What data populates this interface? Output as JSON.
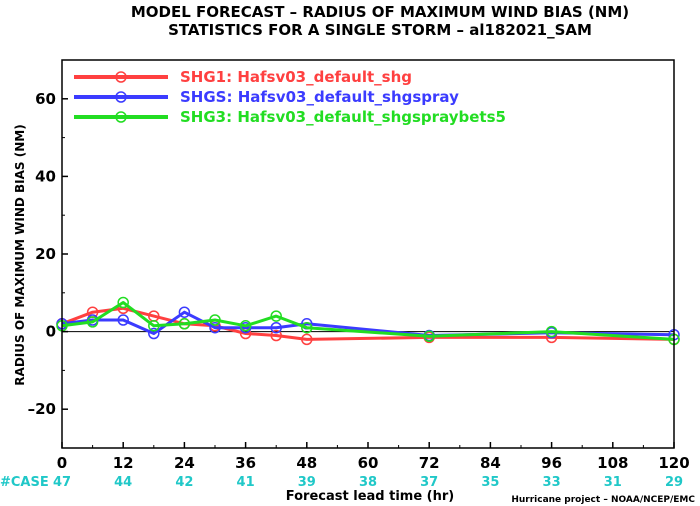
{
  "chart_data": {
    "type": "line",
    "title": "MODEL FORECAST – RADIUS OF MAXIMUM WIND BIAS (NM)",
    "subtitle": "STATISTICS FOR A SINGLE STORM – al182021_SAM",
    "xlabel": "Forecast lead time (hr)",
    "ylabel": "RADIUS OF MAXIMUM WIND BIAS (NM)",
    "xlim": [
      0,
      120
    ],
    "ylim": [
      -30,
      70
    ],
    "xticks": [
      0,
      12,
      24,
      36,
      48,
      60,
      72,
      84,
      96,
      108,
      120
    ],
    "yticks": [
      -20,
      0,
      20,
      40,
      60
    ],
    "grid": false,
    "legend_position": "top-left",
    "case_label": "#CASE",
    "case_counts": [
      {
        "x": 0,
        "label": "47"
      },
      {
        "x": 12,
        "label": "44"
      },
      {
        "x": 24,
        "label": "42"
      },
      {
        "x": 36,
        "label": "41"
      },
      {
        "x": 48,
        "label": "39"
      },
      {
        "x": 60,
        "label": "38"
      },
      {
        "x": 72,
        "label": "37"
      },
      {
        "x": 84,
        "label": "35"
      },
      {
        "x": 96,
        "label": "33"
      },
      {
        "x": 108,
        "label": "31"
      },
      {
        "x": 120,
        "label": "29"
      }
    ],
    "credit": "Hurricane project – NOAA/NCEP/EMC",
    "series": [
      {
        "name": "SHG1: Hafsv03_default_shg",
        "color": "#ff4040",
        "x": [
          0,
          6,
          12,
          18,
          24,
          30,
          36,
          42,
          48,
          72,
          96,
          120
        ],
        "y": [
          2,
          5,
          6,
          4,
          2,
          1.5,
          -0.5,
          -1,
          -2,
          -1.5,
          -1.5,
          -2
        ]
      },
      {
        "name": "SHGS: Hafsv03_default_shgspray",
        "color": "#3b3bff",
        "x": [
          0,
          6,
          12,
          18,
          24,
          30,
          36,
          42,
          48,
          72,
          96,
          120
        ],
        "y": [
          2,
          3,
          3,
          -0.5,
          5,
          1,
          1,
          1,
          2,
          -1,
          -0.3,
          -0.8
        ]
      },
      {
        "name": "SHG3: Hafsv03_default_shgspraybets5",
        "color": "#22dd22",
        "x": [
          0,
          6,
          12,
          18,
          24,
          30,
          36,
          42,
          48,
          72,
          96,
          120
        ],
        "y": [
          1.5,
          2.5,
          7.5,
          1.5,
          2,
          3,
          1.5,
          4,
          1,
          -1.2,
          0,
          -2
        ]
      }
    ]
  }
}
